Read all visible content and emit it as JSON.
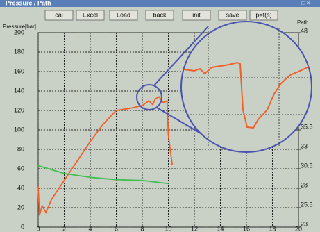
{
  "window": {
    "title": "Pressure / Path",
    "buttons": [
      "cal",
      "Excel",
      "Load",
      "back",
      "init",
      "save",
      "p=f(s)"
    ]
  },
  "chart_data": {
    "type": "line",
    "y_label": "Pressure[bar]",
    "y2_label": "Path",
    "xlim": [
      0,
      20
    ],
    "xticks": [
      0,
      2,
      4,
      6,
      8,
      10,
      12,
      14,
      16,
      18,
      20
    ],
    "ylim": [
      0,
      200
    ],
    "yticks": [
      0,
      20,
      40,
      60,
      80,
      100,
      120,
      140,
      160,
      180,
      200
    ],
    "y2lim": [
      23,
      48
    ],
    "y2ticks": [
      23,
      25.5,
      28,
      30.5,
      33,
      35.5,
      48
    ],
    "grid": true,
    "series": [
      {
        "color": "#f0602a",
        "x": [
          0,
          0.1,
          0.3,
          0.6,
          1,
          2,
          3,
          4,
          5,
          6,
          7,
          8,
          8.5,
          8.8,
          9,
          9.3,
          9.6,
          9.9,
          10,
          10.3
        ],
        "values": [
          42,
          12,
          22,
          15,
          28,
          48,
          68,
          88,
          106,
          120,
          122,
          125,
          130,
          126,
          132,
          134,
          128,
          130,
          95,
          64
        ]
      },
      {
        "color": "#40c050",
        "axis": "y2",
        "x": [
          0,
          1,
          2,
          4,
          6,
          8,
          9,
          10
        ],
        "values": [
          30.9,
          30.4,
          29.9,
          29.4,
          29.1,
          29,
          28.8,
          28.6
        ]
      }
    ]
  }
}
